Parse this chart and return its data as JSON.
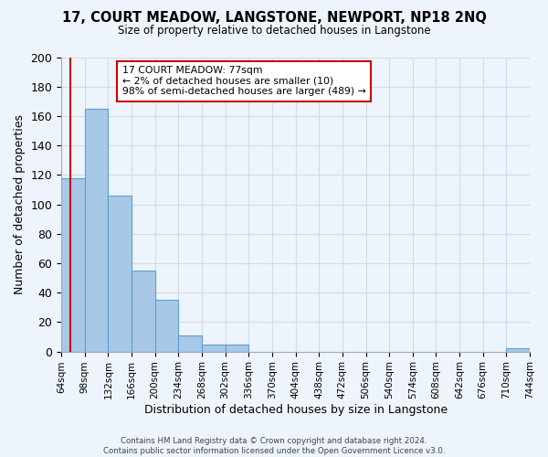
{
  "title": "17, COURT MEADOW, LANGSTONE, NEWPORT, NP18 2NQ",
  "subtitle": "Size of property relative to detached houses in Langstone",
  "xlabel": "Distribution of detached houses by size in Langstone",
  "ylabel": "Number of detached properties",
  "bar_values": [
    118,
    165,
    106,
    55,
    35,
    11,
    5,
    5,
    0,
    0,
    0,
    0,
    0,
    0,
    0,
    0,
    0,
    0,
    0,
    2
  ],
  "bin_labels": [
    "64sqm",
    "98sqm",
    "132sqm",
    "166sqm",
    "200sqm",
    "234sqm",
    "268sqm",
    "302sqm",
    "336sqm",
    "370sqm",
    "404sqm",
    "438sqm",
    "472sqm",
    "506sqm",
    "540sqm",
    "574sqm",
    "608sqm",
    "642sqm",
    "676sqm",
    "710sqm",
    "744sqm"
  ],
  "bar_color": "#a8c8e8",
  "bar_edge_color": "#5a9fd4",
  "property_line_x": 77,
  "x_min": 64,
  "x_max": 744,
  "bin_width": 34,
  "ylim": [
    0,
    200
  ],
  "yticks": [
    0,
    20,
    40,
    60,
    80,
    100,
    120,
    140,
    160,
    180,
    200
  ],
  "annotation_title": "17 COURT MEADOW: 77sqm",
  "annotation_line1": "← 2% of detached houses are smaller (10)",
  "annotation_line2": "98% of semi-detached houses are larger (489) →",
  "footer_line1": "Contains HM Land Registry data © Crown copyright and database right 2024.",
  "footer_line2": "Contains public sector information licensed under the Open Government Licence v3.0.",
  "bg_color": "#eef4fb",
  "grid_color": "#d0dce8",
  "red_line_color": "#cc0000",
  "annotation_box_edge": "#cc0000"
}
